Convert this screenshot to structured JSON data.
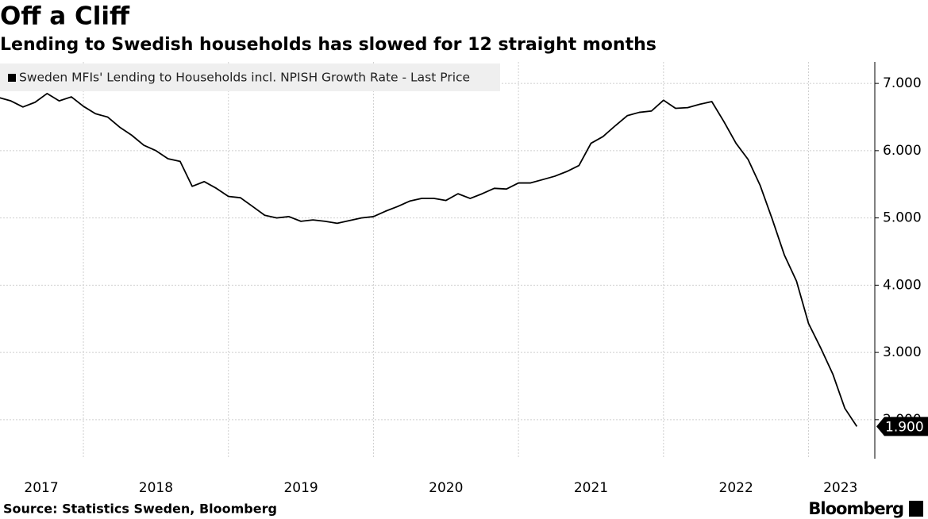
{
  "chart_data": {
    "type": "line",
    "title": "Off a Cliff",
    "subtitle": "Lending to Swedish households has slowed for 12 straight months",
    "source": "Source: Statistics Sweden, Bloomberg",
    "brand": "Bloomberg",
    "x": [
      2017.417,
      2017.5,
      2017.583,
      2017.667,
      2017.75,
      2017.833,
      2017.917,
      2018.0,
      2018.083,
      2018.167,
      2018.25,
      2018.333,
      2018.417,
      2018.5,
      2018.583,
      2018.667,
      2018.75,
      2018.833,
      2018.917,
      2019.0,
      2019.083,
      2019.167,
      2019.25,
      2019.333,
      2019.417,
      2019.5,
      2019.583,
      2019.667,
      2019.75,
      2019.833,
      2019.917,
      2020.0,
      2020.083,
      2020.167,
      2020.25,
      2020.333,
      2020.417,
      2020.5,
      2020.583,
      2020.667,
      2020.75,
      2020.833,
      2020.917,
      2021.0,
      2021.083,
      2021.167,
      2021.25,
      2021.333,
      2021.417,
      2021.5,
      2021.583,
      2021.667,
      2021.75,
      2021.833,
      2021.917,
      2022.0,
      2022.083,
      2022.167,
      2022.25,
      2022.333,
      2022.417,
      2022.5,
      2022.583,
      2022.667,
      2022.75,
      2022.833,
      2022.917,
      2023.0,
      2023.083,
      2023.167,
      2023.25,
      2023.333
    ],
    "series": [
      {
        "name": "Sweden MFIs' Lending to Households incl. NPISH Growth Rate - Last Price",
        "color": "#000000",
        "values": [
          6.79,
          6.74,
          6.65,
          6.72,
          6.85,
          6.74,
          6.8,
          6.66,
          6.55,
          6.5,
          6.35,
          6.23,
          6.08,
          6.0,
          5.88,
          5.84,
          5.47,
          5.54,
          5.44,
          5.32,
          5.3,
          5.17,
          5.04,
          5.0,
          5.02,
          4.95,
          4.97,
          4.95,
          4.92,
          4.96,
          5.0,
          5.02,
          5.1,
          5.17,
          5.25,
          5.29,
          5.29,
          5.26,
          5.36,
          5.29,
          5.36,
          5.44,
          5.43,
          5.52,
          5.52,
          5.57,
          5.62,
          5.69,
          5.78,
          6.11,
          6.21,
          6.37,
          6.52,
          6.57,
          6.59,
          6.75,
          6.63,
          6.64,
          6.69,
          6.73,
          6.43,
          6.11,
          5.87,
          5.48,
          4.98,
          4.45,
          4.06,
          3.43,
          3.07,
          2.68,
          2.17,
          1.9
        ],
        "value_labels": [
          null,
          null,
          null,
          null,
          null,
          null,
          null,
          null,
          null,
          null,
          null,
          null,
          null,
          null,
          null,
          null,
          null,
          null,
          null,
          null,
          null,
          null,
          null,
          null,
          null,
          null,
          null,
          null,
          null,
          null,
          null,
          null,
          null,
          null,
          null,
          null,
          null,
          null,
          null,
          null,
          null,
          null,
          null,
          null,
          null,
          null,
          null,
          null,
          null,
          null,
          null,
          null,
          null,
          null,
          null,
          null,
          null,
          null,
          null,
          null,
          null,
          null,
          null,
          null,
          null,
          null,
          null,
          null,
          null,
          null,
          null,
          "1.900"
        ]
      }
    ],
    "xlim": [
      2017.425,
      2023.446
    ],
    "xticks": [
      {
        "value": 2017.71,
        "label": "2017"
      },
      {
        "value": 2018.5,
        "label": "2018"
      },
      {
        "value": 2019.5,
        "label": "2019"
      },
      {
        "value": 2020.5,
        "label": "2020"
      },
      {
        "value": 2021.5,
        "label": "2021"
      },
      {
        "value": 2022.5,
        "label": "2022"
      },
      {
        "value": 2023.22,
        "label": "2023"
      }
    ],
    "xgrid": [
      2018,
      2019,
      2020,
      2021,
      2022,
      2023
    ],
    "ylim": [
      1.42,
      7.32
    ],
    "yticks": [
      {
        "value": 2,
        "label": "2.000"
      },
      {
        "value": 3,
        "label": "3.000"
      },
      {
        "value": 4,
        "label": "4.000"
      },
      {
        "value": 5,
        "label": "5.000"
      },
      {
        "value": 6,
        "label": "6.000"
      },
      {
        "value": 7,
        "label": "7.000"
      }
    ],
    "grid": true,
    "legend": "top-left"
  }
}
